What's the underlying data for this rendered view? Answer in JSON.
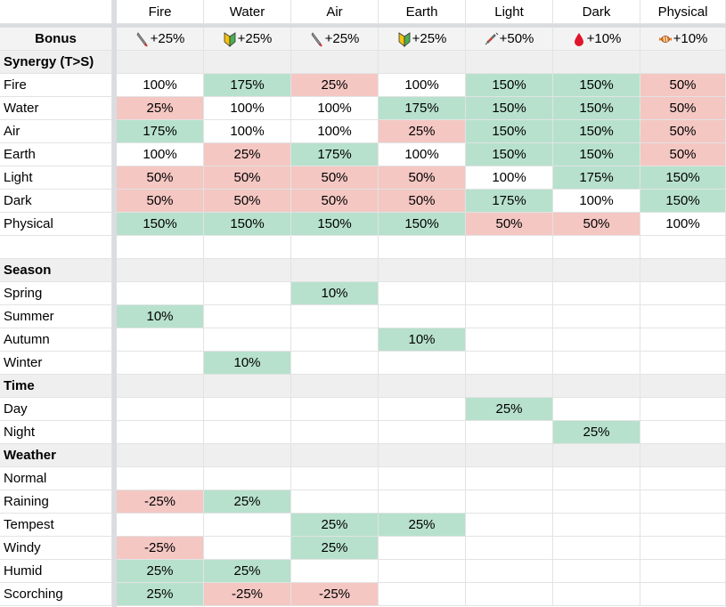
{
  "palette": {
    "g": "#b7e1cd",
    "r": "#f4c7c3"
  },
  "header": [
    "Fire",
    "Water",
    "Air",
    "Earth",
    "Light",
    "Dark",
    "Physical"
  ],
  "bonus": {
    "label": "Bonus",
    "values": [
      "+25%",
      "+25%",
      "+25%",
      "+25%",
      "+50%",
      "+10%",
      "+10%"
    ]
  },
  "sections": [
    {
      "title": "Synergy (T>S)",
      "rows": [
        {
          "label": "Fire",
          "cells": [
            "100%",
            "175%",
            "25%",
            "100%",
            "150%",
            "150%",
            "50%"
          ],
          "fills": [
            null,
            "g",
            "r",
            null,
            "g",
            "g",
            "r"
          ]
        },
        {
          "label": "Water",
          "cells": [
            "25%",
            "100%",
            "100%",
            "175%",
            "150%",
            "150%",
            "50%"
          ],
          "fills": [
            "r",
            null,
            null,
            "g",
            "g",
            "g",
            "r"
          ]
        },
        {
          "label": "Air",
          "cells": [
            "175%",
            "100%",
            "100%",
            "25%",
            "150%",
            "150%",
            "50%"
          ],
          "fills": [
            "g",
            null,
            null,
            "r",
            "g",
            "g",
            "r"
          ]
        },
        {
          "label": "Earth",
          "cells": [
            "100%",
            "25%",
            "175%",
            "100%",
            "150%",
            "150%",
            "50%"
          ],
          "fills": [
            null,
            "r",
            "g",
            null,
            "g",
            "g",
            "r"
          ]
        },
        {
          "label": "Light",
          "cells": [
            "50%",
            "50%",
            "50%",
            "50%",
            "100%",
            "175%",
            "150%"
          ],
          "fills": [
            "r",
            "r",
            "r",
            "r",
            null,
            "g",
            "g"
          ]
        },
        {
          "label": "Dark",
          "cells": [
            "50%",
            "50%",
            "50%",
            "50%",
            "175%",
            "100%",
            "150%"
          ],
          "fills": [
            "r",
            "r",
            "r",
            "r",
            "g",
            null,
            "g"
          ]
        },
        {
          "label": "Physical",
          "cells": [
            "150%",
            "150%",
            "150%",
            "150%",
            "50%",
            "50%",
            "100%"
          ],
          "fills": [
            "g",
            "g",
            "g",
            "g",
            "r",
            "r",
            null
          ]
        },
        {
          "label": null,
          "cells": [
            null,
            null,
            null,
            null,
            null,
            null,
            null
          ],
          "fills": [
            null,
            null,
            null,
            null,
            null,
            null,
            null
          ]
        }
      ]
    },
    {
      "title": "Season",
      "rows": [
        {
          "label": "Spring",
          "cells": [
            null,
            null,
            "10%",
            null,
            null,
            null,
            null
          ],
          "fills": [
            null,
            null,
            "g",
            null,
            null,
            null,
            null
          ]
        },
        {
          "label": "Summer",
          "cells": [
            "10%",
            null,
            null,
            null,
            null,
            null,
            null
          ],
          "fills": [
            "g",
            null,
            null,
            null,
            null,
            null,
            null
          ]
        },
        {
          "label": "Autumn",
          "cells": [
            null,
            null,
            null,
            "10%",
            null,
            null,
            null
          ],
          "fills": [
            null,
            null,
            null,
            "g",
            null,
            null,
            null
          ]
        },
        {
          "label": "Winter",
          "cells": [
            null,
            "10%",
            null,
            null,
            null,
            null,
            null
          ],
          "fills": [
            null,
            "g",
            null,
            null,
            null,
            null,
            null
          ]
        }
      ]
    },
    {
      "title": "Time",
      "rows": [
        {
          "label": "Day",
          "cells": [
            null,
            null,
            null,
            null,
            "25%",
            null,
            null
          ],
          "fills": [
            null,
            null,
            null,
            null,
            "g",
            null,
            null
          ]
        },
        {
          "label": "Night",
          "cells": [
            null,
            null,
            null,
            null,
            null,
            "25%",
            null
          ],
          "fills": [
            null,
            null,
            null,
            null,
            null,
            "g",
            null
          ]
        }
      ]
    },
    {
      "title": "Weather",
      "rows": [
        {
          "label": "Normal",
          "cells": [
            null,
            null,
            null,
            null,
            null,
            null,
            null
          ],
          "fills": [
            null,
            null,
            null,
            null,
            null,
            null,
            null
          ]
        },
        {
          "label": "Raining",
          "cells": [
            "-25%",
            "25%",
            null,
            null,
            null,
            null,
            null
          ],
          "fills": [
            "r",
            "g",
            null,
            null,
            null,
            null,
            null
          ]
        },
        {
          "label": "Tempest",
          "cells": [
            null,
            null,
            "25%",
            "25%",
            null,
            null,
            null
          ],
          "fills": [
            null,
            null,
            "g",
            "g",
            null,
            null,
            null
          ]
        },
        {
          "label": "Windy",
          "cells": [
            "-25%",
            null,
            "25%",
            null,
            null,
            null,
            null
          ],
          "fills": [
            "r",
            null,
            "g",
            null,
            null,
            null,
            null
          ]
        },
        {
          "label": "Humid",
          "cells": [
            "25%",
            "25%",
            null,
            null,
            null,
            null,
            null
          ],
          "fills": [
            "g",
            "g",
            null,
            null,
            null,
            null,
            null
          ]
        },
        {
          "label": "Scorching",
          "cells": [
            "25%",
            "-25%",
            "-25%",
            null,
            null,
            null,
            null
          ],
          "fills": [
            "g",
            "r",
            "r",
            null,
            null,
            null,
            null
          ]
        }
      ]
    }
  ]
}
